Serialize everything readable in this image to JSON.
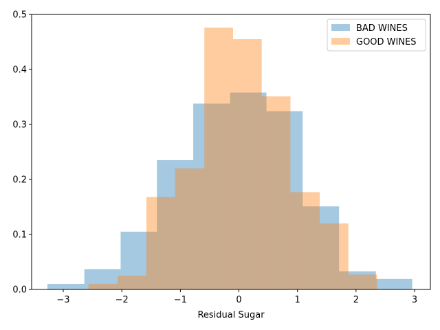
{
  "chart_data": {
    "type": "bar",
    "title": "",
    "xlabel": "Residual Sugar",
    "ylabel": "",
    "xlim": [
      -3.54,
      3.27
    ],
    "ylim": [
      0,
      0.5
    ],
    "xticks": [
      -3,
      -2,
      -1,
      0,
      1,
      2,
      3
    ],
    "yticks": [
      0.0,
      0.1,
      0.2,
      0.3,
      0.4,
      0.5
    ],
    "xtick_labels": [
      "−3",
      "−2",
      "−1",
      "0",
      "1",
      "2",
      "3"
    ],
    "ytick_labels": [
      "0.0",
      "0.1",
      "0.2",
      "0.3",
      "0.4",
      "0.5"
    ],
    "grid": false,
    "legend_position": "top-right",
    "series": [
      {
        "name": "BAD WINES",
        "color": "#1f77b4",
        "opacity": 0.4,
        "bin_edges": [
          -3.27,
          -2.64,
          -2.02,
          -1.4,
          -0.78,
          -0.15,
          0.47,
          1.09,
          1.71,
          2.34,
          2.96
        ],
        "values": [
          0.01,
          0.037,
          0.105,
          0.235,
          0.338,
          0.358,
          0.324,
          0.151,
          0.033,
          0.019
        ]
      },
      {
        "name": "GOOD WINES",
        "color": "#ff7f0e",
        "opacity": 0.4,
        "bin_edges": [
          -2.57,
          -2.07,
          -1.58,
          -1.09,
          -0.59,
          -0.1,
          0.39,
          0.88,
          1.38,
          1.87,
          2.36
        ],
        "values": [
          0.01,
          0.025,
          0.168,
          0.22,
          0.476,
          0.455,
          0.351,
          0.177,
          0.12,
          0.027
        ]
      }
    ]
  }
}
